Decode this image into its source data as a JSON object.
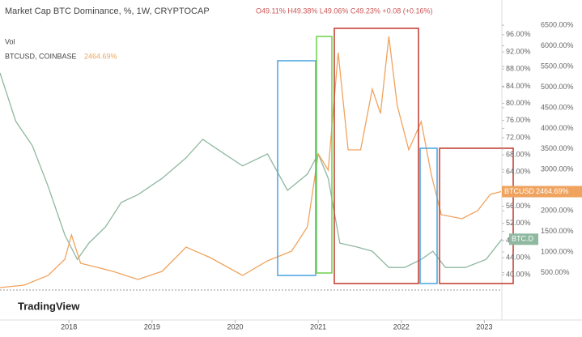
{
  "chart_data": {
    "type": "line",
    "title": "Market Cap BTC Dominance, %, 1W, CRYPTOCAP",
    "annotations": [
      "O49.11% H49.38% L49.06% C49.23% +0.08 (+0.16%)",
      "Vol",
      "BTCUSD",
      "TradingView"
    ],
    "xlim": [
      2017.17,
      2023.21
    ],
    "xticks": [
      2018,
      2019,
      2020,
      2021,
      2022,
      2023
    ],
    "ylim": [
      35.7,
      104.1
    ],
    "yticks": [
      {
        "value": 40,
        "label": "40.00%"
      },
      {
        "value": 44,
        "label": "44.00%"
      },
      {
        "value": 48,
        "label": "48.00%"
      },
      {
        "value": 52,
        "label": "52.00%"
      },
      {
        "value": 56,
        "label": "56.00%"
      },
      {
        "value": 60,
        "label": "60.00%"
      },
      {
        "value": 64,
        "label": "64.00%"
      },
      {
        "value": 68,
        "label": "68.00%"
      },
      {
        "value": 72,
        "label": "72.00%"
      },
      {
        "value": 76,
        "label": "76.00%"
      },
      {
        "value": 80,
        "label": "80.00%"
      },
      {
        "value": 84,
        "label": "84.00%"
      },
      {
        "value": 88,
        "label": "88.00%"
      },
      {
        "value": 92,
        "label": "92.00%"
      },
      {
        "value": 96,
        "label": "96.00%"
      }
    ],
    "y2lim": [
      0,
      7112
    ],
    "y2ticks": [
      {
        "value": 500,
        "label": "500.00%"
      },
      {
        "value": 1000,
        "label": "1000.00%"
      },
      {
        "value": 1500,
        "label": "1500.00%"
      },
      {
        "value": 2000,
        "label": "2000.00%"
      },
      {
        "value": 2500,
        "label": "2500.00%"
      },
      {
        "value": 3000,
        "label": "3000.00%"
      },
      {
        "value": 3500,
        "label": "3500.00%"
      },
      {
        "value": 4000,
        "label": "4000.00%"
      },
      {
        "value": 4500,
        "label": "4500.00%"
      },
      {
        "value": 5000,
        "label": "5000.00%"
      },
      {
        "value": 5500,
        "label": "5500.00%"
      },
      {
        "value": 6000,
        "label": "6000.00%"
      },
      {
        "value": 6500,
        "label": "6500.00%"
      }
    ],
    "series": [
      {
        "name": "BTC.D",
        "color": "#8fb8a0",
        "axis": "y",
        "x": [
          2017.17,
          2017.36,
          2017.56,
          2017.75,
          2017.95,
          2018.1,
          2018.24,
          2018.44,
          2018.63,
          2018.83,
          2019.12,
          2019.41,
          2019.61,
          2019.8,
          2020.09,
          2020.39,
          2020.63,
          2020.87,
          2021.0,
          2021.12,
          2021.26,
          2021.46,
          2021.65,
          2021.85,
          2022.04,
          2022.24,
          2022.38,
          2022.53,
          2022.77,
          2023.02,
          2023.21
        ],
        "values": [
          87.1,
          75.8,
          70.1,
          60.6,
          49.3,
          43.6,
          47.4,
          51.2,
          56.9,
          58.7,
          62.5,
          67.3,
          71.6,
          69.1,
          65.4,
          68.2,
          59.7,
          63.5,
          68.2,
          62.5,
          47.4,
          46.5,
          45.5,
          41.7,
          41.7,
          43.6,
          45.5,
          41.7,
          41.7,
          43.6,
          48.3
        ]
      },
      {
        "name": "BTCUSD, COINBASE",
        "color": "#f0a35e",
        "axis": "y2",
        "x": [
          2017.17,
          2017.46,
          2017.75,
          2017.95,
          2018.03,
          2018.14,
          2018.34,
          2018.53,
          2018.83,
          2019.12,
          2019.41,
          2019.7,
          2020.09,
          2020.39,
          2020.68,
          2020.87,
          2021.0,
          2021.12,
          2021.24,
          2021.36,
          2021.51,
          2021.65,
          2021.75,
          2021.85,
          2021.95,
          2022.09,
          2022.24,
          2022.36,
          2022.48,
          2022.73,
          2022.92,
          2023.07,
          2023.2
        ],
        "values": [
          138,
          196,
          432,
          825,
          1415,
          727,
          629,
          530,
          334,
          530,
          1120,
          864,
          432,
          786,
          1022,
          1611,
          3379,
          2986,
          5835,
          3477,
          3477,
          4951,
          4361,
          6228,
          4558,
          3477,
          4165,
          2888,
          1906,
          1807,
          2004,
          2397,
          2464.69
        ],
        "value_labels": [
          null,
          null,
          null,
          null,
          null,
          null,
          null,
          null,
          null,
          null,
          null,
          null,
          null,
          null,
          null,
          null,
          null,
          null,
          null,
          null,
          null,
          null,
          null,
          null,
          null,
          null,
          null,
          null,
          null,
          null,
          null,
          null,
          "2464.69%"
        ]
      }
    ]
  }
}
